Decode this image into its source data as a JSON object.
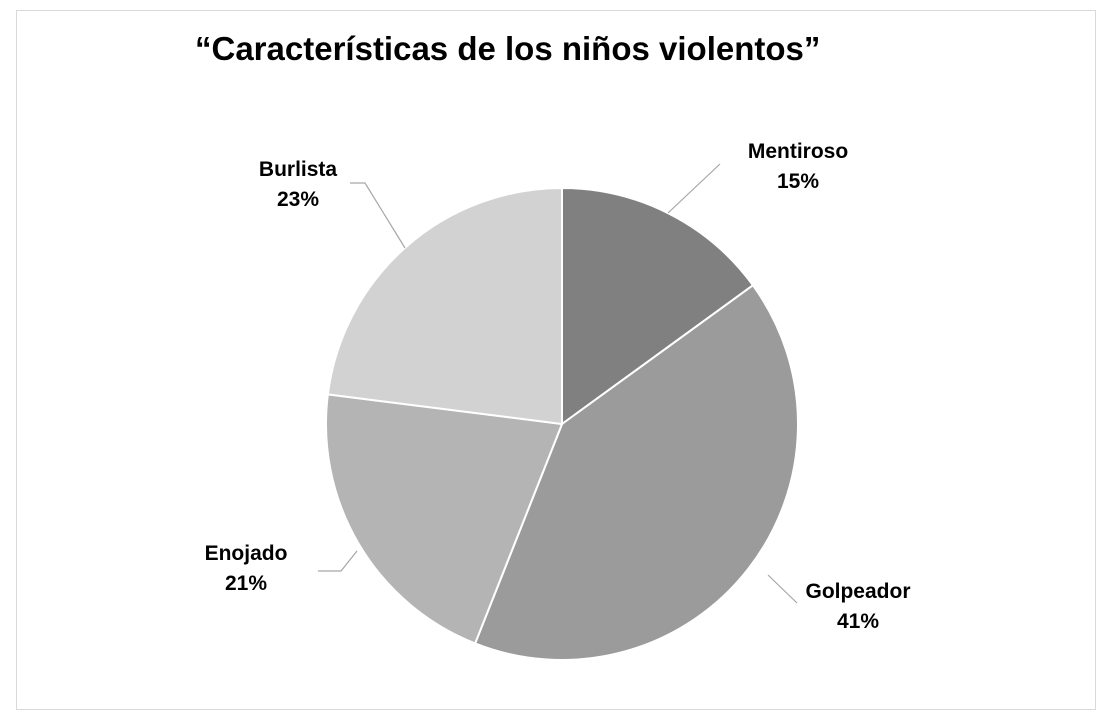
{
  "chart_data": {
    "type": "pie",
    "title": "“Características de los niños violentos”",
    "categories": [
      "Mentiroso",
      "Golpeador",
      "Enojado",
      "Burlista"
    ],
    "values": [
      15,
      41,
      21,
      23
    ],
    "value_labels": [
      "15%",
      "41%",
      "21%",
      "23%"
    ],
    "colors": [
      "#808080",
      "#9b9b9b",
      "#b4b4b4",
      "#d2d2d2"
    ],
    "start_angle_deg": 0,
    "direction": "clockwise",
    "legend": "none",
    "data_labels": "outside-with-leader-lines"
  }
}
